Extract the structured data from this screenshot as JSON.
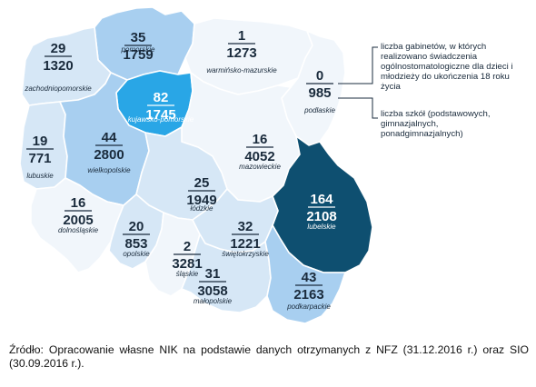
{
  "colors": {
    "tier_lightest": "#f1f6fb",
    "tier_light": "#d6e7f6",
    "tier_mid": "#a8cff0",
    "tier_strong": "#29a6e6",
    "tier_dark": "#0e4f70",
    "text_dark": "#1a2b3c",
    "text_light": "#ffffff"
  },
  "legend": {
    "top_label": "liczba gabinetów, w których realizowano świadczenia ogólnostomatologiczne dla dzieci i młodzieży do ukończenia 18 roku życia",
    "bottom_label": "liczba szkół (podstawowych, gimnazjalnych, ponadgimnazjalnych)"
  },
  "regions": [
    {
      "key": "pomorskie",
      "name": "pomorskie",
      "clinics": "35",
      "schools": "1759",
      "tier": "mid"
    },
    {
      "key": "warminsko",
      "name": "warmińsko-mazurskie",
      "clinics": "1",
      "schools": "1273",
      "tier": "lightest"
    },
    {
      "key": "zachodniopomorskie",
      "name": "zachodniopomorskie",
      "clinics": "29",
      "schools": "1320",
      "tier": "light"
    },
    {
      "key": "podlaskie",
      "name": "podlaskie",
      "clinics": "0",
      "schools": "985",
      "tier": "lightest"
    },
    {
      "key": "kujawsko",
      "name": "kujawsko-pomorskie",
      "clinics": "82",
      "schools": "1745",
      "tier": "strong"
    },
    {
      "key": "lubuskie",
      "name": "lubuskie",
      "clinics": "19",
      "schools": "771",
      "tier": "light"
    },
    {
      "key": "wielkopolskie",
      "name": "wielkopolskie",
      "clinics": "44",
      "schools": "2800",
      "tier": "mid"
    },
    {
      "key": "mazowieckie",
      "name": "mazowieckie",
      "clinics": "16",
      "schools": "4052",
      "tier": "lightest"
    },
    {
      "key": "lodzkie",
      "name": "łódzkie",
      "clinics": "25",
      "schools": "1949",
      "tier": "light"
    },
    {
      "key": "lubelskie",
      "name": "lubelskie",
      "clinics": "164",
      "schools": "2108",
      "tier": "dark"
    },
    {
      "key": "dolnoslaskie",
      "name": "dolnośląskie",
      "clinics": "16",
      "schools": "2005",
      "tier": "lightest"
    },
    {
      "key": "opolskie",
      "name": "opolskie",
      "clinics": "20",
      "schools": "853",
      "tier": "light"
    },
    {
      "key": "slaskie",
      "name": "śląskie",
      "clinics": "2",
      "schools": "3281",
      "tier": "lightest"
    },
    {
      "key": "swietokrzyskie",
      "name": "świętokrzyskie",
      "clinics": "32",
      "schools": "1221",
      "tier": "light"
    },
    {
      "key": "malopolskie",
      "name": "małopolskie",
      "clinics": "31",
      "schools": "3058",
      "tier": "light"
    },
    {
      "key": "podkarpackie",
      "name": "podkarpackie",
      "clinics": "43",
      "schools": "2163",
      "tier": "mid"
    }
  ],
  "source": "Źródło: Opracowanie własne NIK na podstawie danych otrzymanych z NFZ (31.12.2016 r.) oraz SIO (30.09.2016 r.)."
}
